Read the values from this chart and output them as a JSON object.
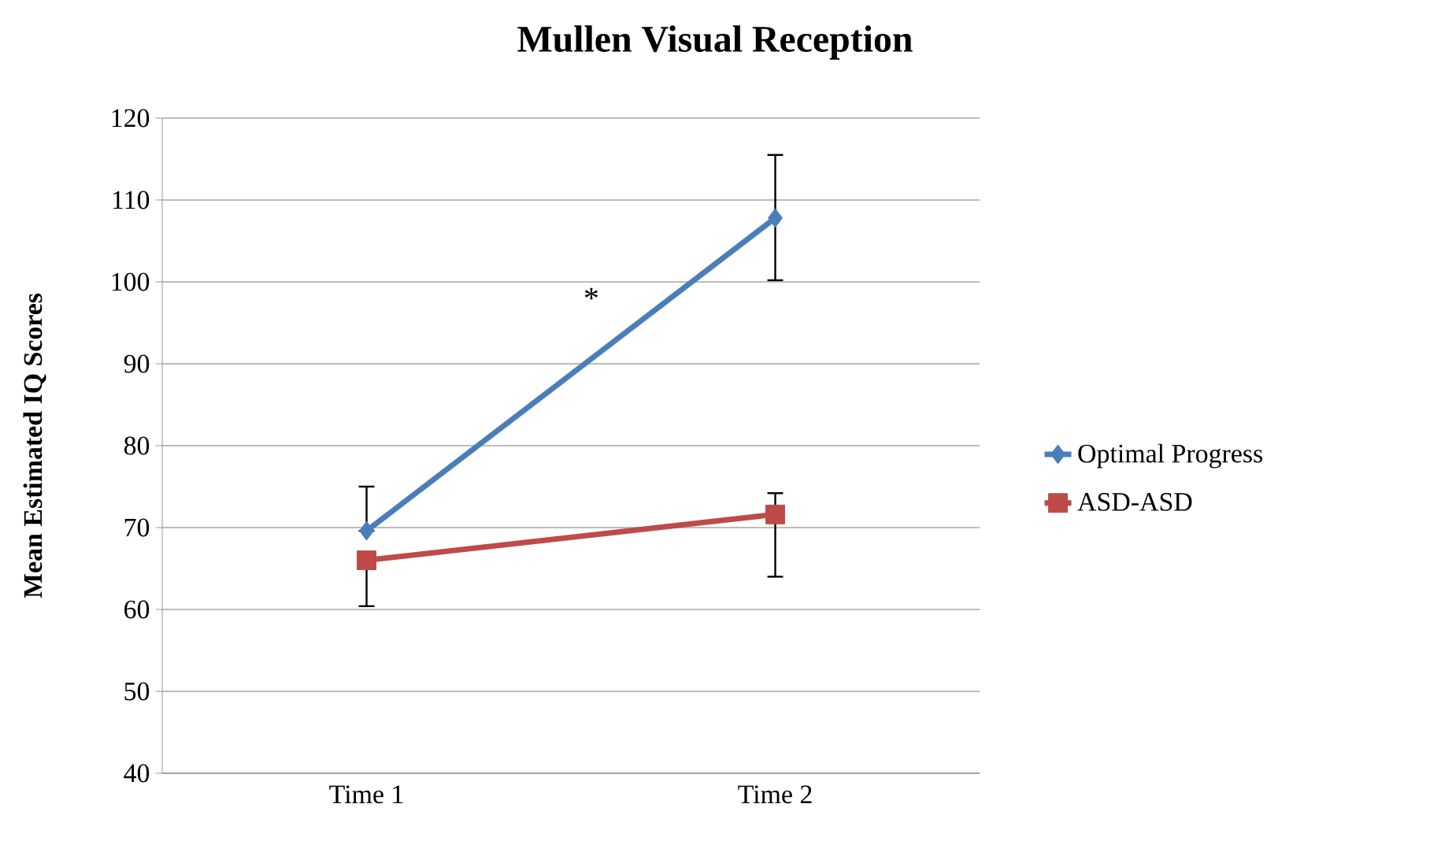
{
  "chart_data": {
    "type": "line",
    "title": "Mullen Visual Reception",
    "ylabel": "Mean Estimated IQ Scores",
    "categories": [
      "Time 1",
      "Time 2"
    ],
    "series": [
      {
        "name": "Optimal Progress",
        "color": "#4a7ebb",
        "marker": "diamond",
        "values": [
          69.6,
          107.8
        ],
        "errors": [
          [
            69.6,
            75
          ],
          [
            100.2,
            115.5
          ]
        ]
      },
      {
        "name": "ASD-ASD",
        "color": "#be4b48",
        "marker": "square",
        "values": [
          66,
          71.6
        ],
        "errors": [
          [
            60.4,
            66
          ],
          [
            64,
            74.2
          ]
        ]
      }
    ],
    "annotations": [
      "*"
    ],
    "ylim": [
      40,
      120
    ],
    "yticks": [
      40,
      50,
      60,
      70,
      80,
      90,
      100,
      110,
      120
    ],
    "grid": "y",
    "legend": "right"
  }
}
